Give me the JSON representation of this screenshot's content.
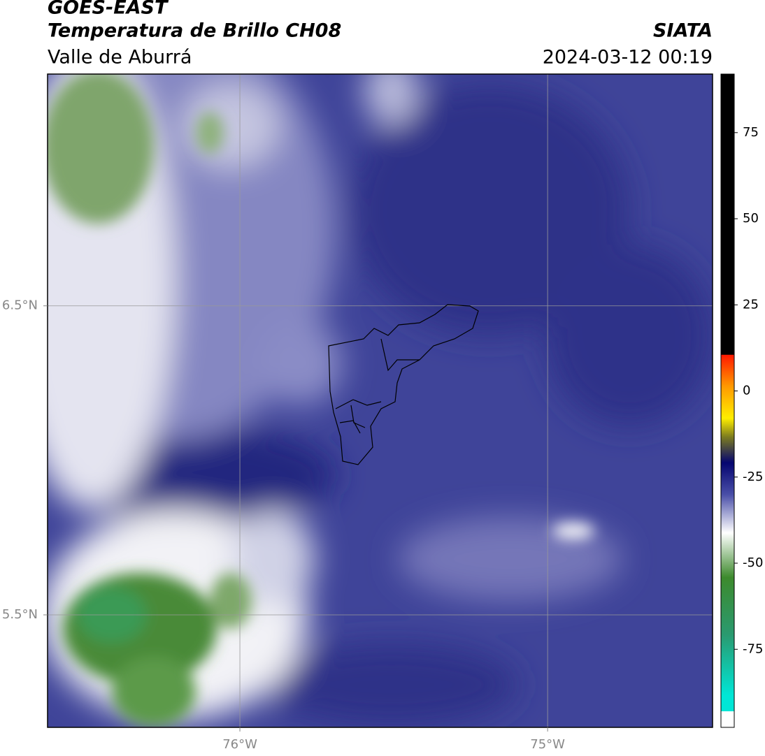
{
  "header": {
    "title": "GOES-EAST",
    "subtitle": "Temperatura de Brillo CH08",
    "region": "Valle de Aburrá",
    "source": "SIATA",
    "datetime": "2024-03-12 00:19"
  },
  "map": {
    "xlim": [
      -76.625,
      -74.464
    ],
    "ylim": [
      5.136,
      7.25
    ],
    "xticks": [
      {
        "value": -76,
        "label": "76°W"
      },
      {
        "value": -75,
        "label": "75°W"
      }
    ],
    "yticks": [
      {
        "value": 6.5,
        "label": "6.5°N"
      },
      {
        "value": 5.5,
        "label": "5.5°N"
      }
    ],
    "grid": true
  },
  "colorbar": {
    "lim": [
      -93,
      92
    ],
    "ticks": [
      75,
      50,
      25,
      0,
      -25,
      -50,
      -75
    ]
  }
}
